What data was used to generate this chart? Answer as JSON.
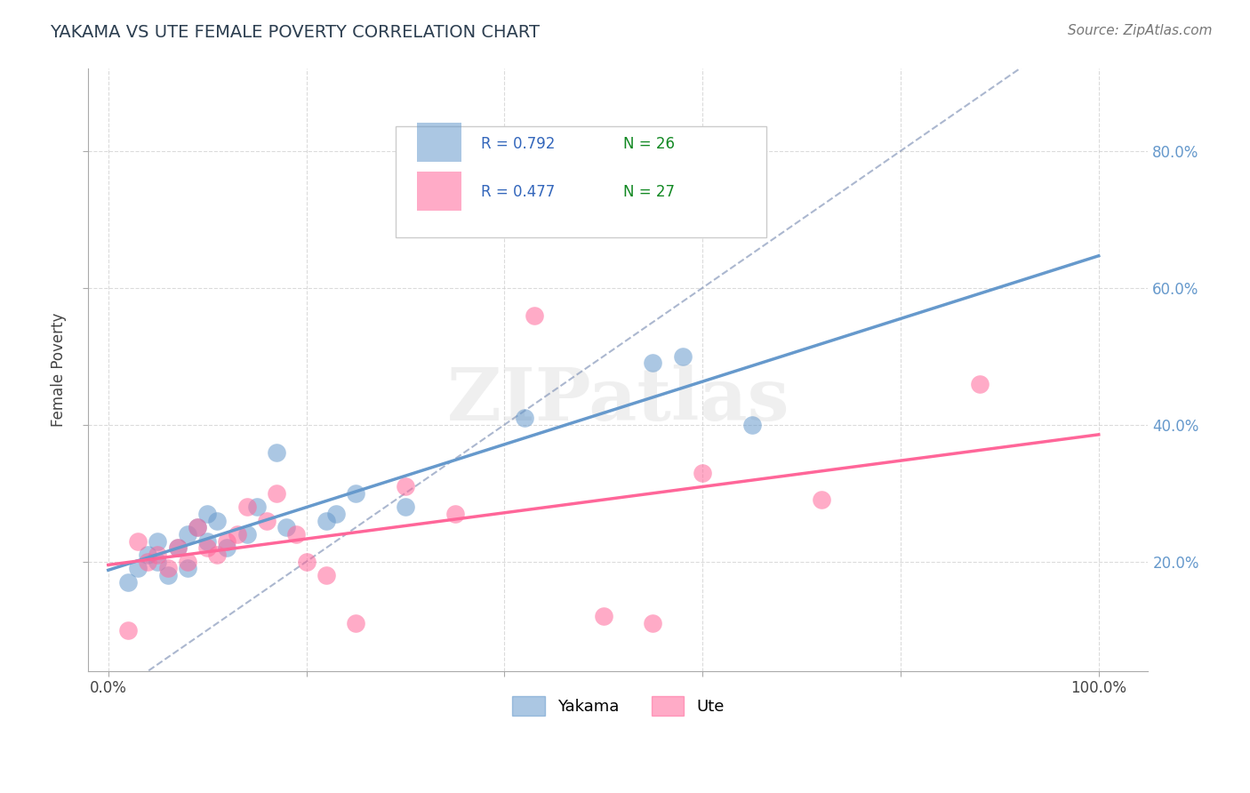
{
  "title": "YAKAMA VS UTE FEMALE POVERTY CORRELATION CHART",
  "source": "Source: ZipAtlas.com",
  "ylabel": "Female Poverty",
  "x_ticks": [
    0,
    20,
    40,
    60,
    80,
    100
  ],
  "x_tick_labels": [
    "0.0%",
    "",
    "",
    "",
    "",
    "100.0%"
  ],
  "y_ticks": [
    0.2,
    0.4,
    0.6,
    0.8
  ],
  "y_tick_labels": [
    "20.0%",
    "40.0%",
    "60.0%",
    "80.0%"
  ],
  "xlim": [
    -2,
    105
  ],
  "ylim": [
    0.04,
    0.92
  ],
  "yakama_color": "#6699CC",
  "ute_color": "#FF6699",
  "yakama_label": "Yakama",
  "ute_label": "Ute",
  "R_yakama": "0.792",
  "N_yakama": "26",
  "R_ute": "0.477",
  "N_ute": "27",
  "yakama_x": [
    2,
    3,
    4,
    5,
    5,
    6,
    7,
    8,
    8,
    9,
    10,
    10,
    11,
    12,
    14,
    15,
    17,
    18,
    22,
    23,
    25,
    30,
    42,
    55,
    58,
    65
  ],
  "yakama_y": [
    0.17,
    0.19,
    0.21,
    0.23,
    0.2,
    0.18,
    0.22,
    0.24,
    0.19,
    0.25,
    0.23,
    0.27,
    0.26,
    0.22,
    0.24,
    0.28,
    0.36,
    0.25,
    0.26,
    0.27,
    0.3,
    0.28,
    0.41,
    0.49,
    0.5,
    0.4
  ],
  "ute_x": [
    2,
    3,
    4,
    5,
    6,
    7,
    8,
    9,
    10,
    11,
    12,
    13,
    14,
    16,
    17,
    19,
    20,
    22,
    25,
    30,
    35,
    43,
    50,
    55,
    60,
    72,
    88
  ],
  "ute_y": [
    0.1,
    0.23,
    0.2,
    0.21,
    0.19,
    0.22,
    0.2,
    0.25,
    0.22,
    0.21,
    0.23,
    0.24,
    0.28,
    0.26,
    0.3,
    0.24,
    0.2,
    0.18,
    0.11,
    0.31,
    0.27,
    0.56,
    0.12,
    0.11,
    0.33,
    0.29,
    0.46
  ],
  "background_color": "#FFFFFF",
  "grid_color": "#CCCCCC",
  "title_color": "#2C3E50",
  "source_color": "#777777",
  "legend_R_color": "#3366BB",
  "legend_N_color": "#118822"
}
